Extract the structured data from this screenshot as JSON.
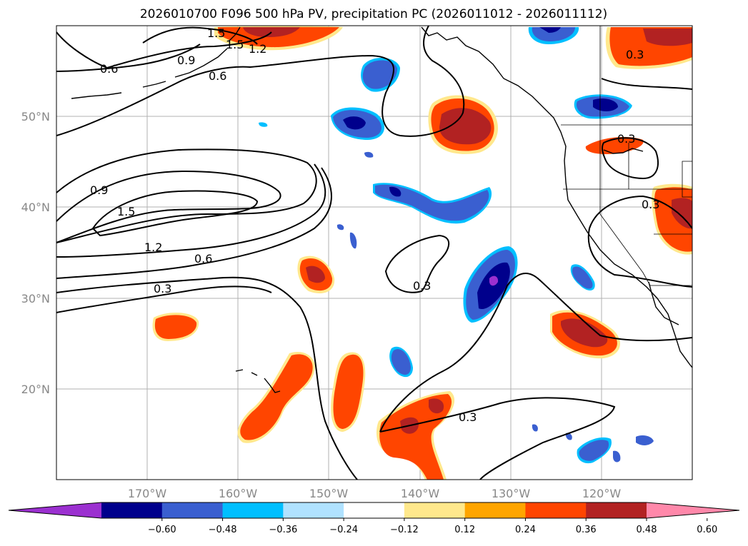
{
  "title": "2026010700 F096 500 hPa PV, precipitation PC (2026011012 - 2026011112)",
  "map": {
    "lat_labels": [
      "50°N",
      "40°N",
      "30°N",
      "20°N"
    ],
    "lon_labels": [
      "170°W",
      "160°W",
      "150°W",
      "140°W",
      "130°W",
      "120°W"
    ],
    "lon_values": [
      -170,
      -160,
      -150,
      -140,
      -130,
      -120
    ],
    "lat_values": [
      50,
      40,
      30,
      20
    ],
    "extent": {
      "lon_min": -180,
      "lon_max": -110,
      "lat_min": 10,
      "lat_max": 60
    },
    "gridlines": true
  },
  "pv_contour_labels": [
    {
      "text": "1.5"
    },
    {
      "text": "1.5"
    },
    {
      "text": "1.2"
    },
    {
      "text": "0.9"
    },
    {
      "text": "0.6"
    },
    {
      "text": "0.6"
    },
    {
      "text": "0.9"
    },
    {
      "text": "1.5"
    },
    {
      "text": "1.2"
    },
    {
      "text": "0.6"
    },
    {
      "text": "0.3"
    },
    {
      "text": "0.3"
    },
    {
      "text": "0.3"
    },
    {
      "text": "0.3"
    },
    {
      "text": "0.3"
    },
    {
      "text": "0.3"
    }
  ],
  "colorbar": {
    "tick_labels": [
      "−0.60",
      "−0.48",
      "−0.36",
      "−0.24",
      "−0.12",
      "0.12",
      "0.24",
      "0.36",
      "0.48",
      "0.60"
    ],
    "colors": [
      "#9b30d0",
      "#00008c",
      "#3a5fd0",
      "#00bfff",
      "#b0e2ff",
      "#ffffff",
      "#ffe88c",
      "#ffa500",
      "#ff4500",
      "#b22222",
      "#ff88aa"
    ],
    "extend": "both"
  },
  "colors": {
    "orange": "#ff4500",
    "darkred": "#b22222",
    "gold": "#ffe88c",
    "navy": "#00008c",
    "royal": "#3a5fd0",
    "sky": "#00bfff",
    "purple": "#9b30d0"
  }
}
